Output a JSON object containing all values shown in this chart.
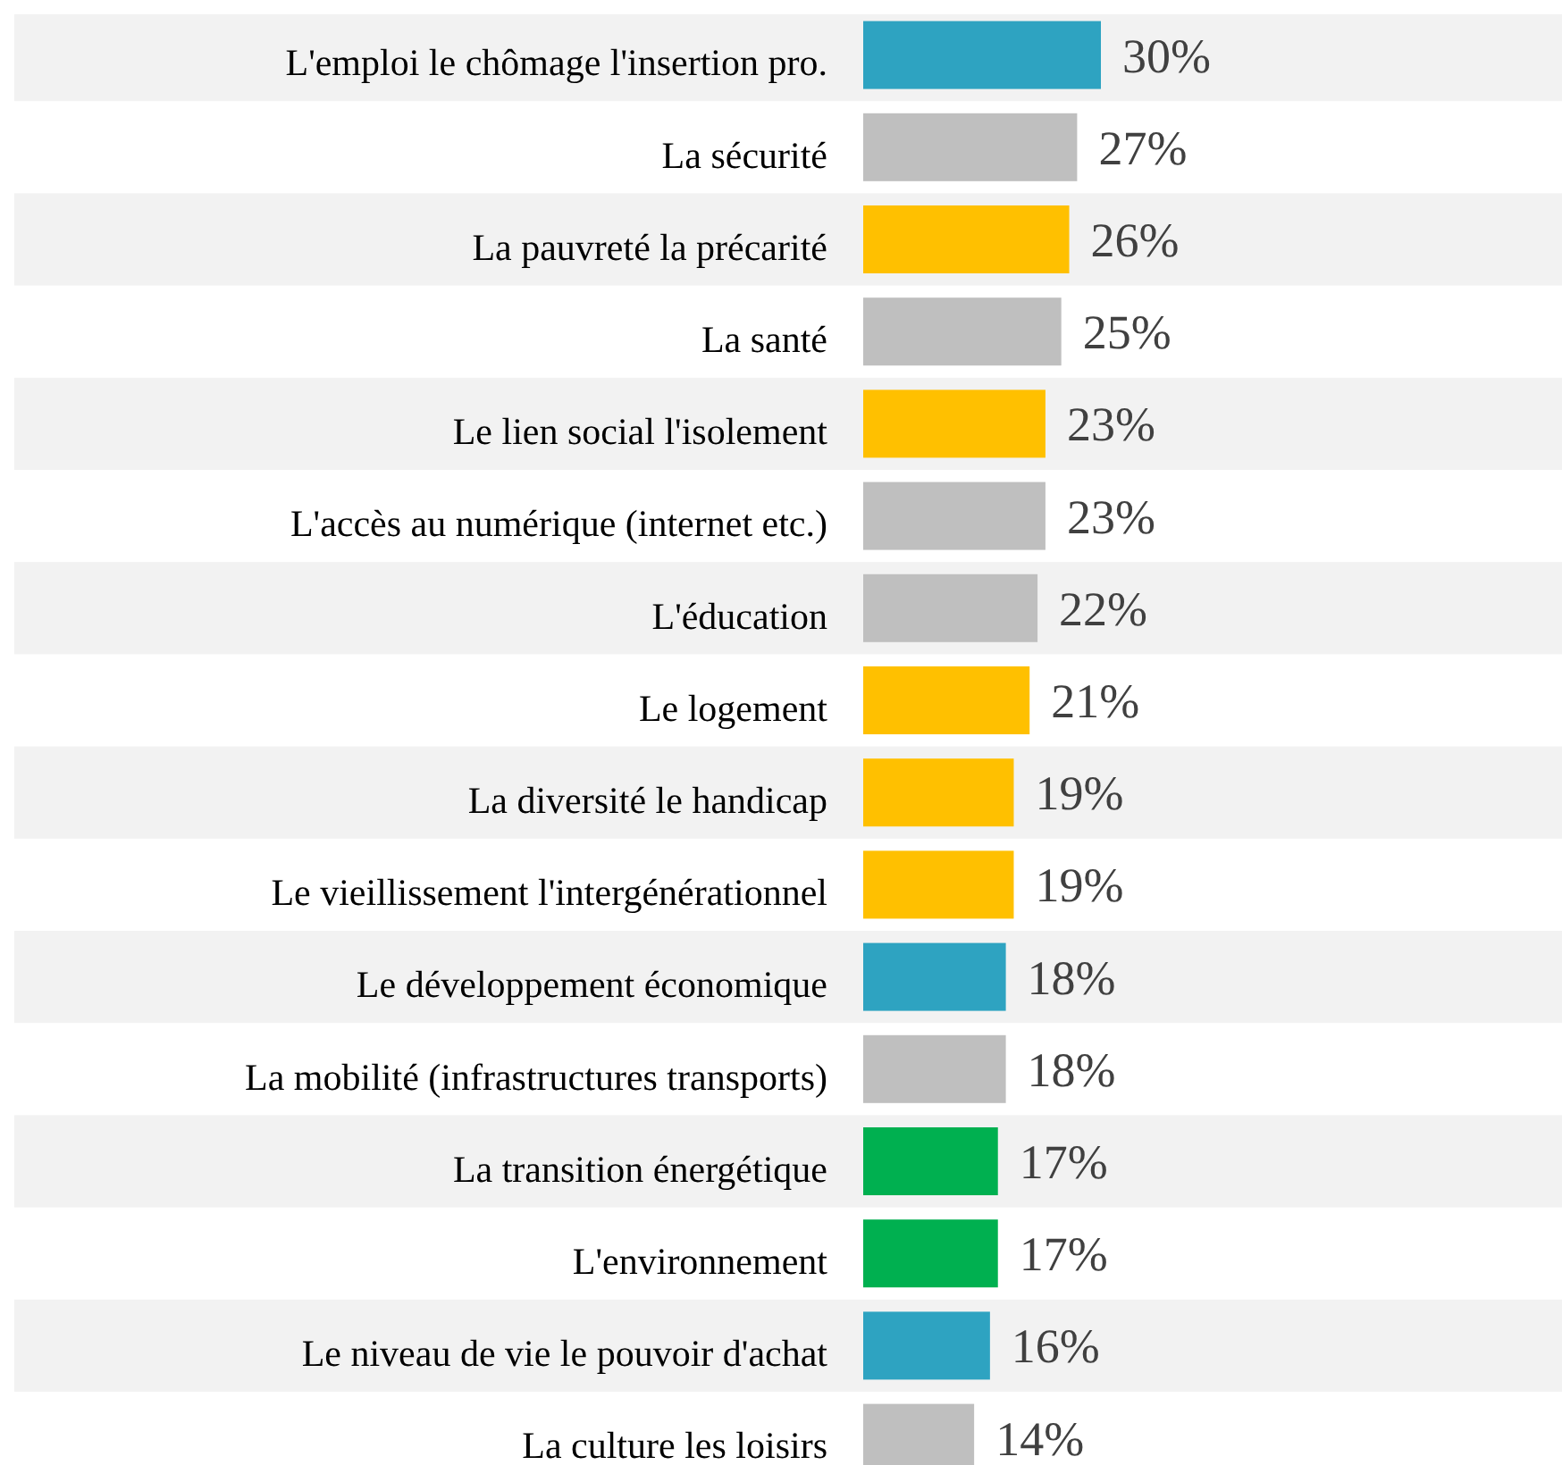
{
  "chart_data": {
    "type": "bar",
    "orientation": "horizontal",
    "bands": [
      {
        "axis": "y",
        "from": "L'emploi le chômage l'insertion pro.",
        "to": "L'emploi le chômage l'insertion pro.",
        "color": "#f2f2f2"
      },
      {
        "axis": "y",
        "from": "La pauvreté la précarité",
        "to": "La pauvreté la précarité",
        "color": "#f2f2f2"
      },
      {
        "axis": "y",
        "from": "Le lien social l'isolement",
        "to": "Le lien social l'isolement",
        "color": "#f2f2f2"
      },
      {
        "axis": "y",
        "from": "L'éducation",
        "to": "L'éducation",
        "color": "#f2f2f2"
      },
      {
        "axis": "y",
        "from": "La diversité le handicap",
        "to": "La diversité le handicap",
        "color": "#f2f2f2"
      },
      {
        "axis": "y",
        "from": "Le développement économique",
        "to": "Le développement économique",
        "color": "#f2f2f2"
      },
      {
        "axis": "y",
        "from": "La transition énergétique",
        "to": "La transition énergétique",
        "color": "#f2f2f2"
      },
      {
        "axis": "y",
        "from": "Le niveau de vie le pouvoir d'achat",
        "to": "Le niveau de vie le pouvoir d'achat",
        "color": "#f2f2f2"
      }
    ],
    "categories": [
      "L'emploi le chômage l'insertion pro.",
      "La sécurité",
      "La pauvreté la précarité",
      "La santé",
      "Le lien social l'isolement",
      "L'accès au numérique (internet etc.)",
      "L'éducation",
      "Le logement",
      "La diversité le handicap",
      "Le vieillissement l'intergénérationnel",
      "Le développement économique",
      "La mobilité (infrastructures transports)",
      "La transition énergétique",
      "L'environnement",
      "Le niveau de vie le pouvoir d'achat",
      "La culture les loisirs"
    ],
    "values": [
      30,
      27,
      26,
      25,
      23,
      23,
      22,
      21,
      19,
      19,
      18,
      18,
      17,
      17,
      16,
      14
    ],
    "value_labels": [
      "30%",
      "27%",
      "26%",
      "25%",
      "23%",
      "23%",
      "22%",
      "21%",
      "19%",
      "19%",
      "18%",
      "18%",
      "17%",
      "17%",
      "16%",
      "14%"
    ],
    "colors": [
      "#2ea3c1",
      "#bfbfbf",
      "#ffc000",
      "#bfbfbf",
      "#ffc000",
      "#bfbfbf",
      "#bfbfbf",
      "#ffc000",
      "#ffc000",
      "#ffc000",
      "#2ea3c1",
      "#bfbfbf",
      "#00b050",
      "#00b050",
      "#2ea3c1",
      "#bfbfbf"
    ]
  }
}
